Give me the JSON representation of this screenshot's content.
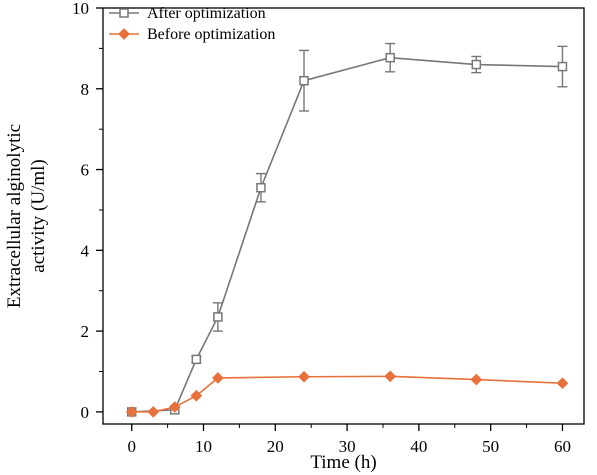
{
  "chart_data": {
    "type": "line",
    "xlabel": "Time (h)",
    "ylabel_lines": [
      "Extracellular alginolytic",
      "activity (U/ml)"
    ],
    "xlim": [
      -4,
      63
    ],
    "ylim": [
      -0.3,
      10
    ],
    "xticks": [
      0,
      10,
      20,
      30,
      40,
      50,
      60
    ],
    "yticks": [
      0,
      2,
      4,
      6,
      8,
      10
    ],
    "grid": false,
    "legend_position": "top-left",
    "series": [
      {
        "name": "After optimization",
        "color": "#777777",
        "marker": "open-square",
        "x": [
          0,
          6,
          9,
          12,
          18,
          24,
          36,
          48,
          60
        ],
        "y": [
          0,
          0.05,
          1.3,
          2.35,
          5.55,
          8.2,
          8.77,
          8.6,
          8.55
        ],
        "err": [
          0.05,
          0.05,
          0.08,
          0.35,
          0.35,
          0.75,
          0.35,
          0.2,
          0.5
        ]
      },
      {
        "name": "Before optimization",
        "color": "#e8703a",
        "marker": "diamond",
        "x": [
          0,
          3,
          6,
          9,
          12,
          24,
          36,
          48,
          60
        ],
        "y": [
          0,
          0,
          0.12,
          0.4,
          0.84,
          0.87,
          0.88,
          0.8,
          0.71
        ],
        "err": [
          0,
          0,
          0,
          0,
          0,
          0,
          0,
          0,
          0
        ]
      }
    ]
  }
}
